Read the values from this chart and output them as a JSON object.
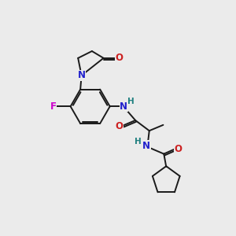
{
  "bg_color": "#ebebeb",
  "bond_color": "#1a1a1a",
  "bond_width": 1.4,
  "atom_colors": {
    "N": "#2020cc",
    "O": "#cc2020",
    "F": "#cc00cc",
    "H": "#208080",
    "C": "#1a1a1a"
  },
  "font_size": 8.5,
  "font_size_h": 7.5
}
